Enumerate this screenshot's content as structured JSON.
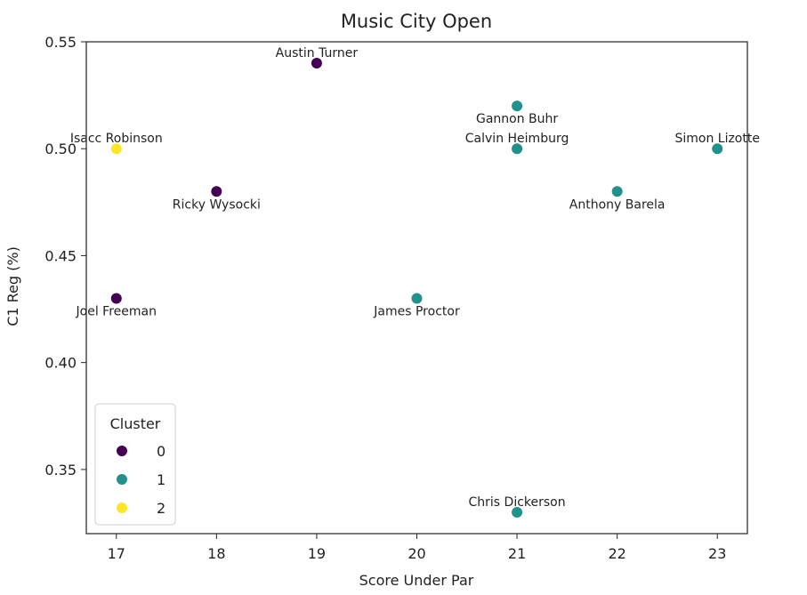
{
  "chart_data": {
    "type": "scatter",
    "title": "Music City Open",
    "xlabel": "Score Under Par",
    "ylabel": "C1 Reg (%)",
    "xlim": [
      16.7,
      23.3
    ],
    "ylim": [
      0.32,
      0.55
    ],
    "xticks": [
      "17",
      "18",
      "19",
      "20",
      "21",
      "22",
      "23"
    ],
    "yticks": [
      "0.35",
      "0.40",
      "0.45",
      "0.50",
      "0.55"
    ],
    "grid": false,
    "legend": {
      "title": "Cluster",
      "placement": "lower-left",
      "entries": [
        {
          "label": "0",
          "color": "#440154"
        },
        {
          "label": "1",
          "color": "#21918c"
        },
        {
          "label": "2",
          "color": "#fde725"
        }
      ]
    },
    "points": [
      {
        "name": "Austin Turner",
        "x": 19,
        "y": 0.54,
        "cluster": 0,
        "label_pos": "above"
      },
      {
        "name": "Gannon Buhr",
        "x": 21,
        "y": 0.52,
        "cluster": 1,
        "label_pos": "below"
      },
      {
        "name": "Isacc Robinson",
        "x": 17,
        "y": 0.5,
        "cluster": 2,
        "label_pos": "above"
      },
      {
        "name": "Calvin Heimburg",
        "x": 21,
        "y": 0.5,
        "cluster": 1,
        "label_pos": "above"
      },
      {
        "name": "Simon Lizotte",
        "x": 23,
        "y": 0.5,
        "cluster": 1,
        "label_pos": "above"
      },
      {
        "name": "Ricky Wysocki",
        "x": 18,
        "y": 0.48,
        "cluster": 0,
        "label_pos": "below"
      },
      {
        "name": "Anthony Barela",
        "x": 22,
        "y": 0.48,
        "cluster": 1,
        "label_pos": "below"
      },
      {
        "name": "Joel Freeman",
        "x": 17,
        "y": 0.43,
        "cluster": 0,
        "label_pos": "below"
      },
      {
        "name": "James Proctor",
        "x": 20,
        "y": 0.43,
        "cluster": 1,
        "label_pos": "below"
      },
      {
        "name": "Chris Dickerson",
        "x": 21,
        "y": 0.33,
        "cluster": 1,
        "label_pos": "above"
      }
    ]
  }
}
